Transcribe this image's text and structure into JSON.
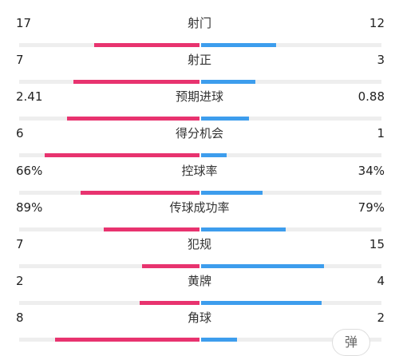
{
  "colors": {
    "home_bar": "#e8336f",
    "away_bar": "#3d9ded",
    "track": "#eeeeee"
  },
  "stats": [
    {
      "label": "射门",
      "home": "17",
      "away": "12",
      "home_value": 17,
      "away_value": 12
    },
    {
      "label": "射正",
      "home": "7",
      "away": "3",
      "home_value": 7,
      "away_value": 3
    },
    {
      "label": "预期进球",
      "home": "2.41",
      "away": "0.88",
      "home_value": 2.41,
      "away_value": 0.88
    },
    {
      "label": "得分机会",
      "home": "6",
      "away": "1",
      "home_value": 6,
      "away_value": 1
    },
    {
      "label": "控球率",
      "home": "66%",
      "away": "34%",
      "home_value": 66,
      "away_value": 34
    },
    {
      "label": "传球成功率",
      "home": "89%",
      "away": "79%",
      "home_value": 89,
      "away_value": 79
    },
    {
      "label": "犯规",
      "home": "7",
      "away": "15",
      "home_value": 7,
      "away_value": 15
    },
    {
      "label": "黄牌",
      "home": "2",
      "away": "4",
      "home_value": 2,
      "away_value": 4
    },
    {
      "label": "角球",
      "home": "8",
      "away": "2",
      "home_value": 8,
      "away_value": 2
    }
  ],
  "danmu_button": {
    "label": "弹"
  }
}
